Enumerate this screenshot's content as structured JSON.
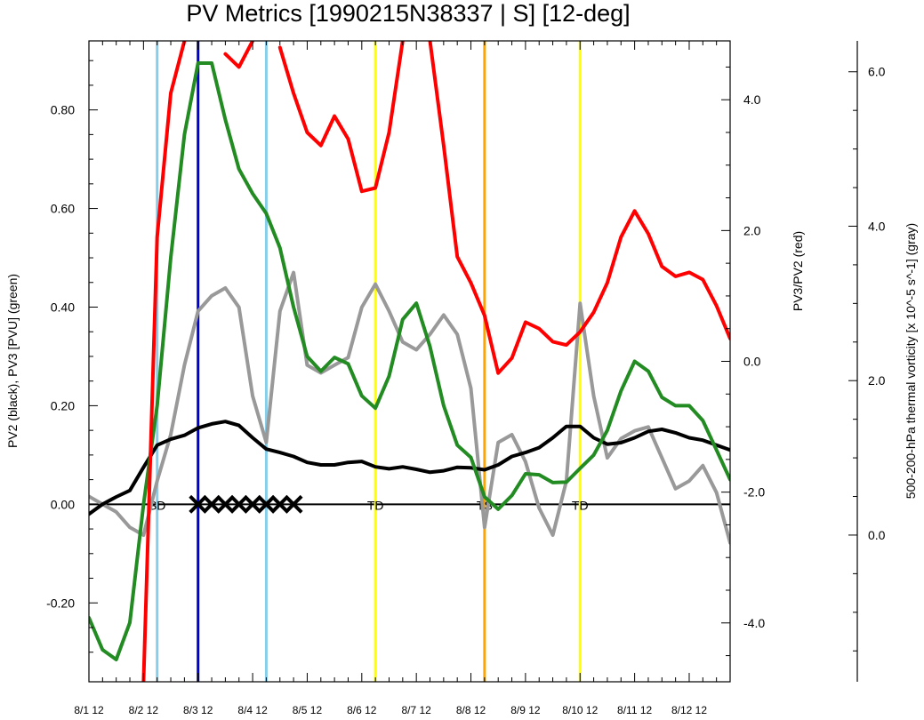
{
  "chart_data": {
    "type": "line",
    "title": "PV Metrics [1990215N38337 | S] [12-deg]",
    "x_tick_labels": [
      "8/1 12",
      "8/2 12",
      "8/3 12",
      "8/4 12",
      "8/5 12",
      "8/6 12",
      "8/7 12",
      "8/8 12",
      "8/9 12",
      "8/10 12",
      "8/11 12",
      "8/12 12"
    ],
    "xlim": [
      0,
      11.75
    ],
    "axes": {
      "left": {
        "label": "PV2 (black), PV3 [PVU] (green)",
        "ylim": [
          -0.36,
          0.94
        ],
        "ticks": [
          -0.2,
          0.0,
          0.2,
          0.4,
          0.6,
          0.8
        ],
        "tick_labels": [
          "-0.20",
          "0.00",
          "0.20",
          "0.40",
          "0.60",
          "0.80"
        ]
      },
      "right": {
        "label": "PV3/PV2 (red)",
        "ylim": [
          -4.9,
          4.9
        ],
        "ticks": [
          -4,
          -2,
          0,
          2,
          4
        ],
        "tick_labels": [
          "-4.0",
          "-2.0",
          "0.0",
          "2.0",
          "4.0"
        ]
      },
      "far_right": {
        "label": "500-200-hPa thermal vorticity [x 10^-5 s^-1] (gray)",
        "ylim": [
          -1.9,
          6.4
        ],
        "ticks": [
          0,
          2,
          4,
          6
        ],
        "tick_labels": [
          "0.0",
          "2.0",
          "4.0",
          "6.0"
        ]
      }
    },
    "zero_line": 0,
    "vertical_lines": [
      {
        "x": 1.25,
        "color": "#87CEEB"
      },
      {
        "x": 2.0,
        "color": "#0000CD"
      },
      {
        "x": 3.25,
        "color": "#87CEEB"
      },
      {
        "x": 5.25,
        "color": "#FFFF00"
      },
      {
        "x": 7.25,
        "color": "#FFA500"
      },
      {
        "x": 9.0,
        "color": "#FFFF00"
      }
    ],
    "markers": [
      {
        "x": 1.25,
        "text": "SD"
      },
      {
        "x": 5.25,
        "text": "TD"
      },
      {
        "x": 7.25,
        "text": "TS"
      },
      {
        "x": 9.0,
        "text": "TD"
      }
    ],
    "x_marks": [
      2.0,
      2.25,
      2.5,
      2.75,
      3.0,
      3.25,
      3.5,
      3.75
    ],
    "x": [
      0,
      0.25,
      0.5,
      0.75,
      1.0,
      1.25,
      1.5,
      1.75,
      2.0,
      2.25,
      2.5,
      2.75,
      3.0,
      3.25,
      3.5,
      3.75,
      4.0,
      4.25,
      4.5,
      4.75,
      5.0,
      5.25,
      5.5,
      5.75,
      6.0,
      6.25,
      6.5,
      6.75,
      7.0,
      7.25,
      7.5,
      7.75,
      8.0,
      8.25,
      8.5,
      8.75,
      9.0,
      9.25,
      9.5,
      9.75,
      10.0,
      10.25,
      10.5,
      10.75,
      11.0,
      11.25,
      11.5,
      11.75
    ],
    "series": [
      {
        "axis": "left",
        "color": "#000000",
        "values": [
          -0.02,
          0.0,
          0.015,
          0.028,
          0.075,
          0.12,
          0.132,
          0.14,
          0.155,
          0.163,
          0.168,
          0.16,
          0.135,
          0.112,
          0.105,
          0.097,
          0.085,
          0.08,
          0.08,
          0.085,
          0.087,
          0.076,
          0.072,
          0.076,
          0.071,
          0.065,
          0.068,
          0.075,
          0.074,
          0.07,
          0.08,
          0.097,
          0.105,
          0.115,
          0.135,
          0.158,
          0.158,
          0.135,
          0.122,
          0.125,
          0.135,
          0.148,
          0.152,
          0.145,
          0.135,
          0.13,
          0.12,
          0.11
        ]
      },
      {
        "axis": "left",
        "color": "#228B22",
        "values": [
          -0.23,
          -0.295,
          -0.315,
          -0.24,
          0.0,
          0.2,
          0.5,
          0.75,
          0.895,
          0.895,
          0.78,
          0.68,
          0.63,
          0.59,
          0.52,
          0.4,
          0.3,
          0.27,
          0.298,
          0.285,
          0.22,
          0.195,
          0.26,
          0.375,
          0.408,
          0.32,
          0.2,
          0.12,
          0.095,
          0.015,
          -0.01,
          0.018,
          0.062,
          0.06,
          0.044,
          0.045,
          0.073,
          0.1,
          0.15,
          0.23,
          0.29,
          0.27,
          0.217,
          0.2,
          0.2,
          0.17,
          0.11,
          0.05
        ]
      },
      {
        "axis": "right",
        "color": "#FF0000",
        "values": [
          null,
          null,
          null,
          null,
          -4.9,
          1.9,
          4.1,
          4.9,
          null,
          null,
          4.7,
          4.5,
          4.9,
          null,
          4.8,
          4.1,
          3.5,
          3.3,
          3.75,
          3.4,
          2.6,
          2.65,
          3.5,
          4.9,
          null,
          4.9,
          3.3,
          1.6,
          1.2,
          0.7,
          -0.18,
          0.05,
          0.6,
          0.5,
          0.3,
          0.25,
          0.45,
          0.75,
          1.2,
          1.9,
          2.3,
          1.95,
          1.45,
          1.3,
          1.36,
          1.25,
          0.85,
          0.35
        ]
      },
      {
        "axis": "far_right",
        "color": "#999999",
        "values": [
          0.5,
          0.4,
          0.3,
          0.1,
          0.0,
          0.7,
          1.3,
          2.2,
          2.9,
          3.1,
          3.2,
          2.95,
          1.8,
          1.2,
          2.9,
          3.4,
          2.2,
          2.1,
          2.2,
          2.3,
          2.95,
          3.25,
          2.9,
          2.5,
          2.4,
          2.6,
          2.85,
          2.6,
          1.9,
          0.1,
          1.2,
          1.3,
          0.95,
          0.35,
          0.0,
          0.7,
          3.0,
          1.8,
          1.0,
          1.25,
          1.35,
          1.4,
          1.0,
          0.6,
          0.7,
          0.9,
          0.55,
          -0.1
        ]
      }
    ]
  }
}
